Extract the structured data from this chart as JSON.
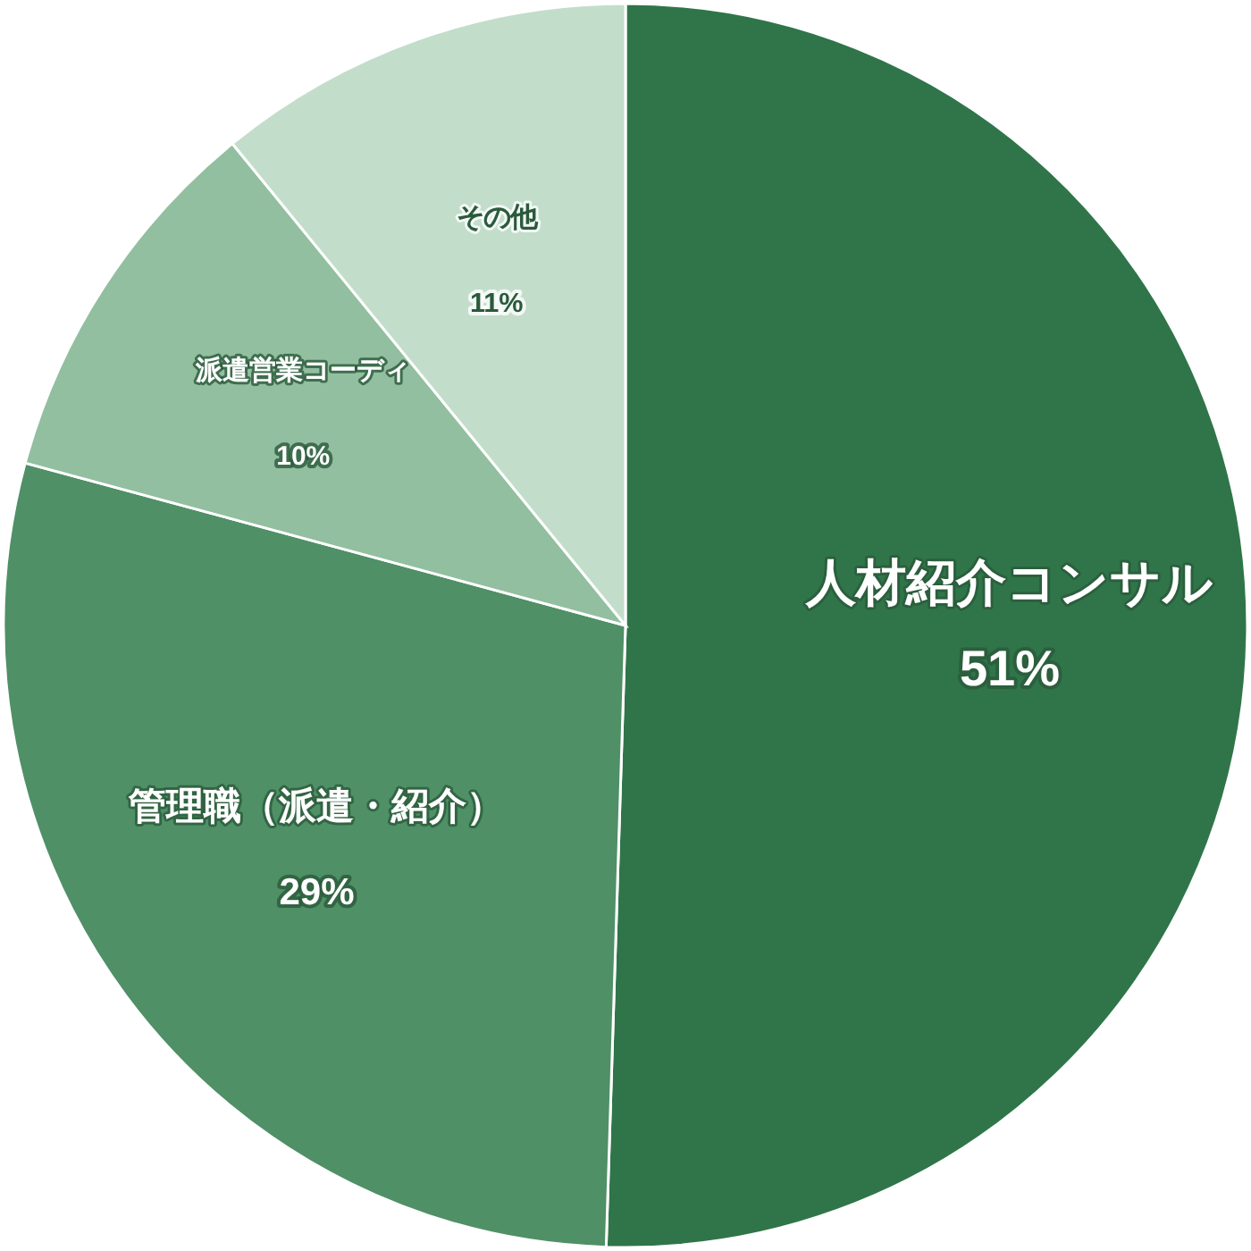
{
  "chart_data": {
    "type": "pie",
    "categories": [
      "人材紹介コンサル",
      "管理職（派遣・紹介）",
      "派遣営業コーディ",
      "その他"
    ],
    "values": [
      51,
      29,
      10,
      11
    ],
    "value_labels": [
      "51%",
      "29%",
      "10%",
      "11%"
    ],
    "colors": [
      "#2f7549",
      "#4f9066",
      "#92bf9f",
      "#c3ddcb"
    ]
  }
}
